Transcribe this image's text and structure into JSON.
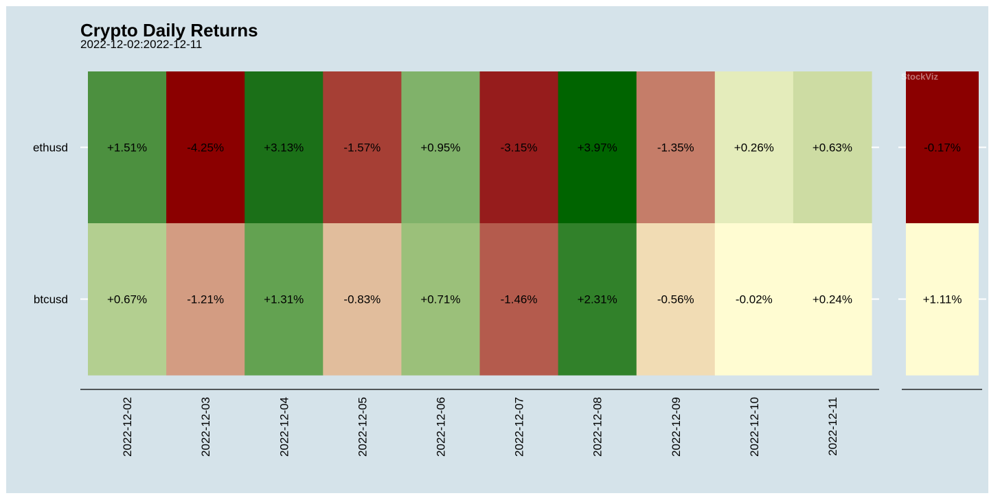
{
  "chart_data": {
    "type": "heatmap",
    "title": "Crypto Daily Returns",
    "subtitle": "2022-12-02:2022-12-11",
    "watermark": "StockViz",
    "rows": [
      "ethusd",
      "btcusd"
    ],
    "columns": [
      "2022-12-02",
      "2022-12-03",
      "2022-12-04",
      "2022-12-05",
      "2022-12-06",
      "2022-12-07",
      "2022-12-08",
      "2022-12-09",
      "2022-12-10",
      "2022-12-11"
    ],
    "values": [
      [
        1.51,
        -4.25,
        3.13,
        -1.57,
        0.95,
        -3.15,
        3.97,
        -1.35,
        0.26,
        0.63
      ],
      [
        0.67,
        -1.21,
        1.31,
        -0.83,
        0.71,
        -1.46,
        2.31,
        -0.56,
        -0.02,
        0.24
      ]
    ],
    "labels": [
      [
        "+1.51%",
        "-4.25%",
        "+3.13%",
        "-1.57%",
        "+0.95%",
        "-3.15%",
        "+3.97%",
        "-1.35%",
        "+0.26%",
        "+0.63%"
      ],
      [
        "+0.67%",
        "-1.21%",
        "+1.31%",
        "-0.83%",
        "+0.71%",
        "-1.46%",
        "+2.31%",
        "-0.56%",
        "-0.02%",
        "+0.24%"
      ]
    ],
    "colors": [
      [
        "#4c903f",
        "#8b0000",
        "#1b7018",
        "#a63f35",
        "#80b26a",
        "#961c1c",
        "#006400",
        "#c57d69",
        "#e4ecbb",
        "#cddca3"
      ],
      [
        "#b3cf90",
        "#d39c82",
        "#63a251",
        "#e1bd9c",
        "#9bc07a",
        "#b45b4d",
        "#31812a",
        "#f1dcb4",
        "#fffcd2",
        "#fffcd2"
      ]
    ],
    "total": {
      "values": [
        -0.17,
        1.11
      ],
      "labels": [
        "-0.17%",
        "+1.11%"
      ],
      "colors": [
        "#8b0000",
        "#fffcd2"
      ]
    },
    "grid": false,
    "legend": "none"
  }
}
